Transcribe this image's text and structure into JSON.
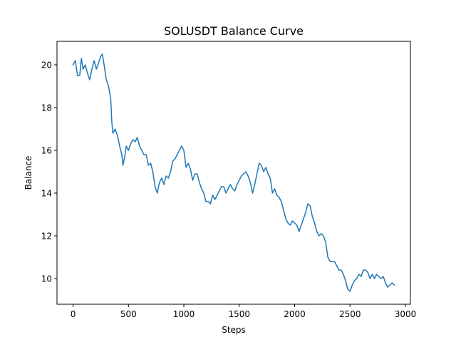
{
  "chart_data": {
    "type": "line",
    "title": "SOLUSDT Balance Curve",
    "xlabel": "Steps",
    "ylabel": "Balance",
    "xlim": [
      -145,
      3045
    ],
    "ylim": [
      8.8,
      21.1
    ],
    "xticks": [
      0,
      500,
      1000,
      1500,
      2000,
      2500,
      3000
    ],
    "yticks": [
      10,
      12,
      14,
      16,
      18,
      20
    ],
    "grid": false,
    "color": "#1f77b4",
    "series": [
      {
        "x": [
          0,
          20,
          40,
          60,
          75,
          90,
          110,
          130,
          150,
          170,
          190,
          210,
          230,
          250,
          265,
          280,
          300,
          320,
          340,
          350,
          360,
          380,
          400,
          420,
          440,
          450,
          470,
          480,
          500,
          520,
          540,
          560,
          580,
          600,
          620,
          640,
          660,
          680,
          700,
          720,
          740,
          760,
          780,
          800,
          820,
          840,
          860,
          880,
          900,
          920,
          940,
          960,
          980,
          1000,
          1020,
          1040,
          1060,
          1080,
          1100,
          1120,
          1140,
          1160,
          1180,
          1200,
          1220,
          1240,
          1260,
          1280,
          1300,
          1320,
          1340,
          1360,
          1380,
          1400,
          1420,
          1440,
          1460,
          1480,
          1500,
          1520,
          1540,
          1560,
          1580,
          1600,
          1620,
          1640,
          1660,
          1680,
          1700,
          1720,
          1740,
          1760,
          1780,
          1800,
          1820,
          1840,
          1860,
          1880,
          1900,
          1920,
          1940,
          1960,
          1980,
          2000,
          2020,
          2040,
          2060,
          2080,
          2100,
          2120,
          2140,
          2160,
          2180,
          2200,
          2220,
          2240,
          2260,
          2280,
          2300,
          2320,
          2340,
          2360,
          2380,
          2400,
          2420,
          2440,
          2460,
          2480,
          2500,
          2520,
          2540,
          2560,
          2580,
          2600,
          2620,
          2640,
          2660,
          2680,
          2700,
          2720,
          2740,
          2760,
          2780,
          2800,
          2820,
          2840,
          2860,
          2880,
          2900
        ],
        "y": [
          20.0,
          20.2,
          19.5,
          19.5,
          20.3,
          19.8,
          20.0,
          19.6,
          19.3,
          19.8,
          20.2,
          19.8,
          20.1,
          20.4,
          20.5,
          20.0,
          19.3,
          19.0,
          18.4,
          17.3,
          16.8,
          17.0,
          16.7,
          16.2,
          15.8,
          15.3,
          15.8,
          16.2,
          16.0,
          16.3,
          16.5,
          16.4,
          16.6,
          16.2,
          16.0,
          15.8,
          15.8,
          15.3,
          15.4,
          15.0,
          14.3,
          14.0,
          14.5,
          14.7,
          14.4,
          14.8,
          14.7,
          15.0,
          15.5,
          15.6,
          15.8,
          16.0,
          16.2,
          16.0,
          15.2,
          15.4,
          15.1,
          14.6,
          14.9,
          14.9,
          14.5,
          14.2,
          14.0,
          13.6,
          13.6,
          13.5,
          13.9,
          13.7,
          13.9,
          14.1,
          14.3,
          14.3,
          14.0,
          14.2,
          14.4,
          14.2,
          14.1,
          14.4,
          14.6,
          14.8,
          14.9,
          15.0,
          14.8,
          14.5,
          14.0,
          14.4,
          14.9,
          15.4,
          15.3,
          15.0,
          15.2,
          14.9,
          14.7,
          14.0,
          14.2,
          13.9,
          13.8,
          13.6,
          13.2,
          12.8,
          12.6,
          12.5,
          12.7,
          12.6,
          12.5,
          12.2,
          12.5,
          12.8,
          13.1,
          13.5,
          13.4,
          12.9,
          12.6,
          12.2,
          12.0,
          12.1,
          12.0,
          11.7,
          11.0,
          10.8,
          10.8,
          10.8,
          10.6,
          10.4,
          10.4,
          10.2,
          9.9,
          9.5,
          9.4,
          9.7,
          9.9,
          10.0,
          10.2,
          10.1,
          10.4,
          10.4,
          10.3,
          10.0,
          10.2,
          10.0,
          10.2,
          10.1,
          10.0,
          10.1,
          9.8,
          9.6,
          9.7,
          9.8,
          9.7
        ]
      }
    ]
  }
}
